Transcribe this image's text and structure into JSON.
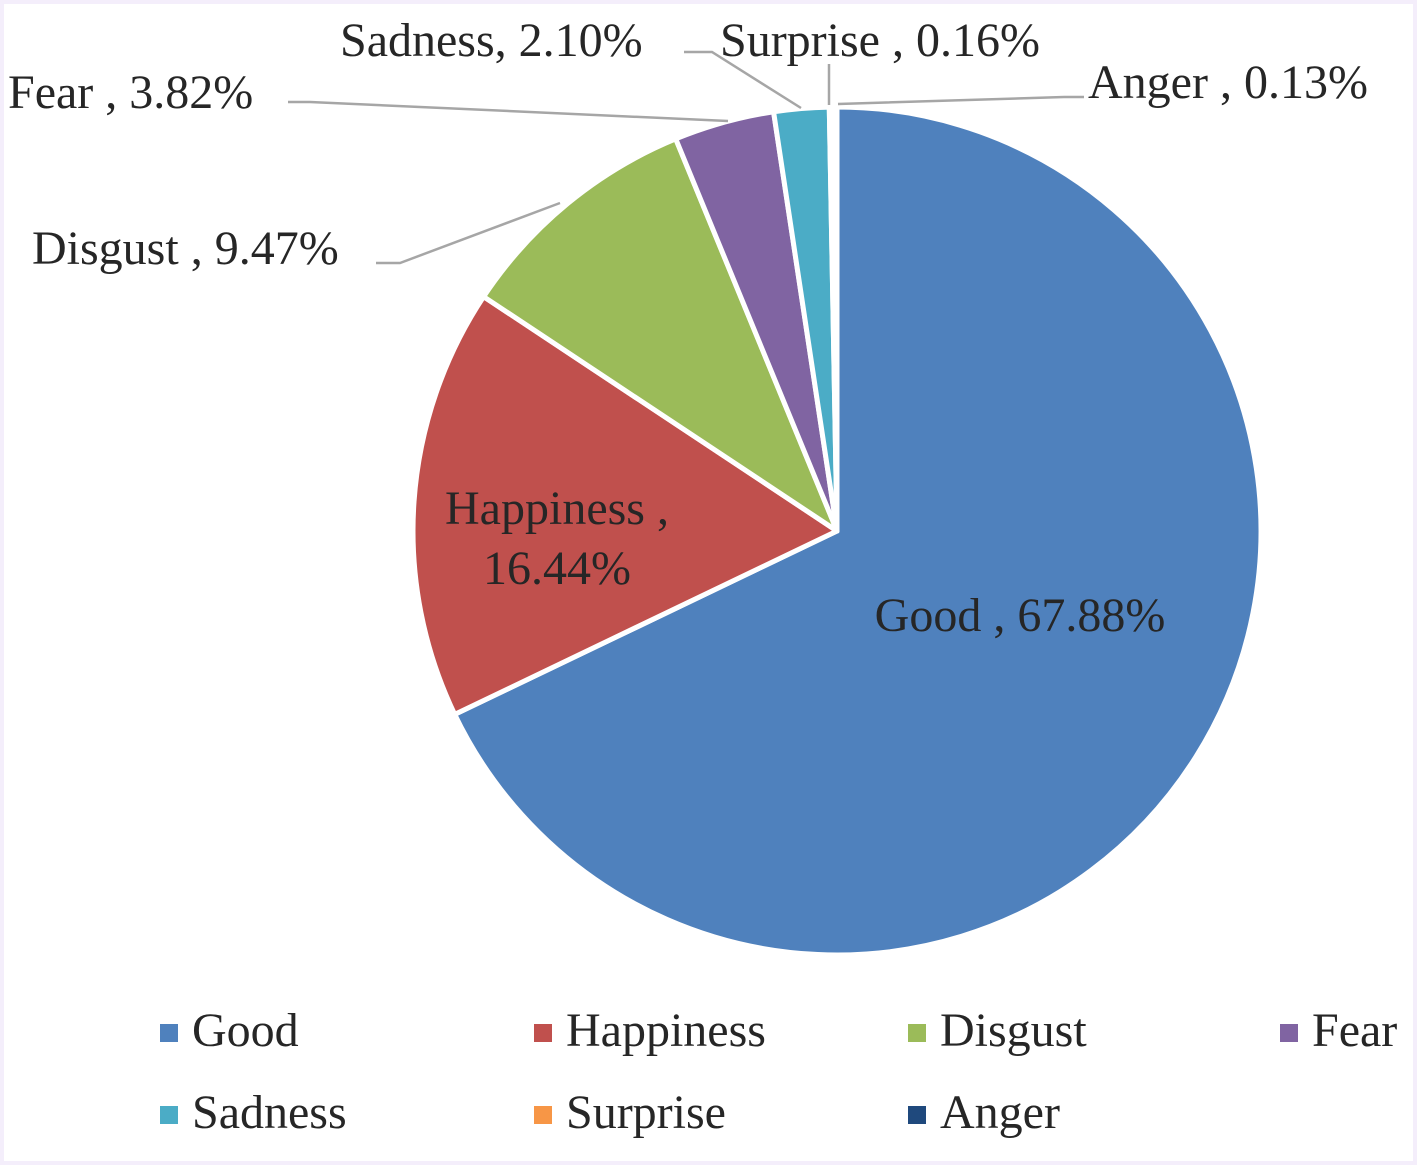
{
  "chart_data": {
    "type": "pie",
    "title": "",
    "categories": [
      "Good",
      "Happiness",
      "Disgust",
      "Fear",
      "Sadness",
      "Surprise",
      "Anger"
    ],
    "values": [
      67.88,
      16.44,
      9.47,
      3.82,
      2.1,
      0.16,
      0.13
    ],
    "colors": [
      "#4f81bd",
      "#c0504d",
      "#9bbb59",
      "#8064a2",
      "#4bacc6",
      "#f79646",
      "#1f497d"
    ],
    "data_labels": [
      {
        "name": "Good ,",
        "value": "67.88%"
      },
      {
        "name": "Happiness ,",
        "value": "16.44%"
      },
      {
        "name": "Disgust ,",
        "value": "9.47%"
      },
      {
        "name": "Fear ,",
        "value": "3.82%"
      },
      {
        "name": "Sadness,",
        "value": "2.10%"
      },
      {
        "name": "Surprise ,",
        "value": "0.16%"
      },
      {
        "name": "Anger ,",
        "value": "0.13%"
      }
    ],
    "legend": {
      "placement": "bottom",
      "entries": [
        "Good",
        "Happiness",
        "Disgust",
        "Fear",
        "Sadness",
        "Surprise",
        "Anger"
      ]
    }
  }
}
